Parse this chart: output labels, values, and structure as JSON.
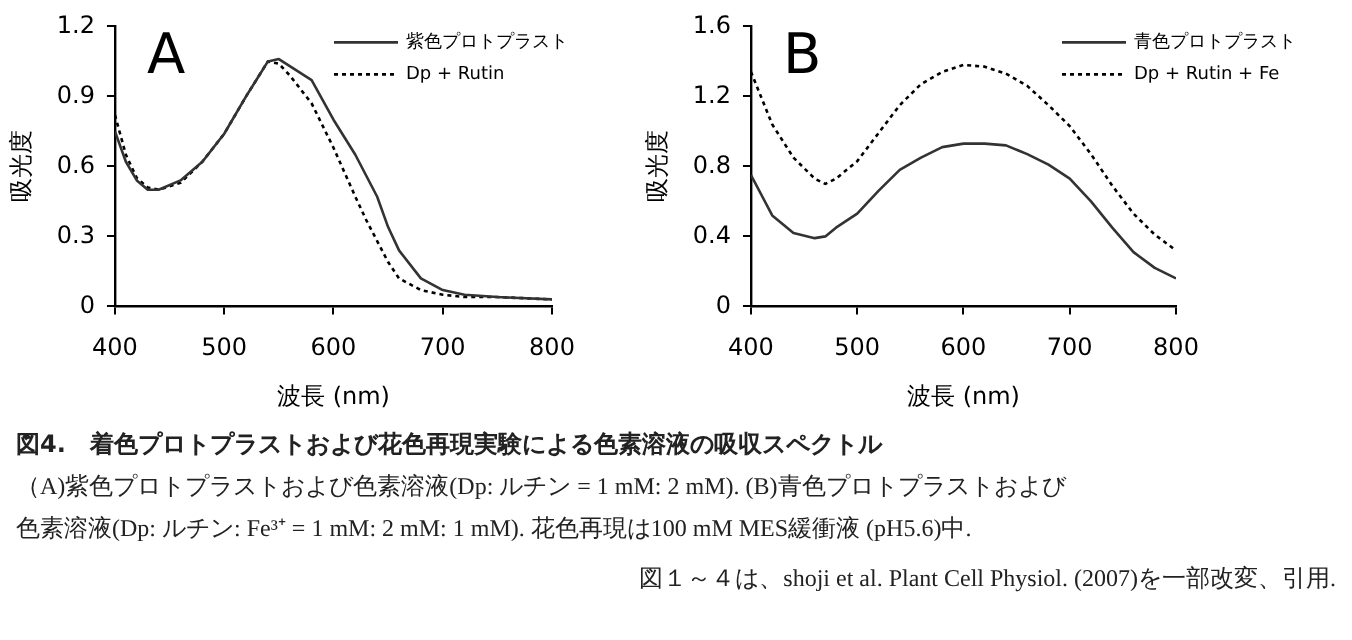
{
  "chart_data": [
    {
      "type": "line",
      "title": "A",
      "xlabel": "波長 (nm)",
      "ylabel": "吸光度",
      "xlim": [
        400,
        800
      ],
      "xticks": [
        400,
        500,
        600,
        700,
        800
      ],
      "ylim": [
        0,
        1.2
      ],
      "yticks": [
        0,
        0.3,
        0.6,
        0.9,
        1.2
      ],
      "grid": false,
      "legend": "top right",
      "marker": "none",
      "x": [
        400,
        410,
        420,
        430,
        440,
        460,
        480,
        500,
        520,
        540,
        550,
        560,
        580,
        600,
        620,
        630,
        640,
        650,
        660,
        680,
        700,
        720,
        750,
        800
      ],
      "series": [
        {
          "name": "紫色プロトプラスト",
          "color": "#333333",
          "line_style": "solid",
          "values": [
            0.75,
            0.62,
            0.54,
            0.5,
            0.5,
            0.54,
            0.62,
            0.74,
            0.9,
            1.05,
            1.06,
            1.03,
            0.97,
            0.8,
            0.65,
            0.56,
            0.47,
            0.34,
            0.24,
            0.12,
            0.07,
            0.05,
            0.04,
            0.03
          ]
        },
        {
          "name": "Dp + Rutin",
          "color": "#000000",
          "line_style": "dotted",
          "values": [
            0.82,
            0.65,
            0.55,
            0.51,
            0.5,
            0.53,
            0.62,
            0.74,
            0.9,
            1.05,
            1.04,
            0.99,
            0.87,
            0.68,
            0.47,
            0.37,
            0.28,
            0.19,
            0.12,
            0.07,
            0.05,
            0.04,
            0.04,
            0.03
          ]
        }
      ],
      "annotations": [
        "図4.　着色プロトプラストおよび花色再現実験による色素溶液の吸収スペクトル",
        "（A)紫色プロトプラストおよび色素溶液(Dp:  ルチン  =  1  mM:  2  mM). (B)青色プロトプラストおよび",
        "色素溶液(Dp:  ルチン: Fe³⁺ = 1 mM: 2 mM: 1 mM). 花色再現は100 mM MES緩衝液 (pH5.6)中.",
        "図１～４は、shoji et al. Plant Cell Physiol. (2007)を一部改変、引用."
      ]
    },
    {
      "type": "line",
      "title": "B",
      "xlabel": "波長 (nm)",
      "ylabel": "吸光度",
      "xlim": [
        400,
        800
      ],
      "xticks": [
        400,
        500,
        600,
        700,
        800
      ],
      "ylim": [
        0,
        1.6
      ],
      "yticks": [
        0,
        0.4,
        0.8,
        1.2,
        1.6
      ],
      "grid": false,
      "legend": "top right",
      "marker": "none",
      "x": [
        400,
        420,
        440,
        460,
        470,
        480,
        500,
        520,
        540,
        560,
        580,
        600,
        620,
        640,
        660,
        680,
        700,
        720,
        740,
        760,
        780,
        800
      ],
      "series": [
        {
          "name": "青色プロトプラスト",
          "color": "#333333",
          "line_style": "solid",
          "values": [
            0.75,
            0.52,
            0.42,
            0.39,
            0.4,
            0.45,
            0.53,
            0.66,
            0.78,
            0.85,
            0.91,
            0.93,
            0.93,
            0.92,
            0.87,
            0.81,
            0.73,
            0.6,
            0.45,
            0.31,
            0.22,
            0.16
          ]
        },
        {
          "name": "Dp + Rutin + Fe",
          "color": "#000000",
          "line_style": "dotted",
          "values": [
            1.34,
            1.04,
            0.85,
            0.73,
            0.7,
            0.73,
            0.83,
            0.99,
            1.15,
            1.27,
            1.34,
            1.38,
            1.37,
            1.33,
            1.26,
            1.15,
            1.03,
            0.87,
            0.69,
            0.53,
            0.41,
            0.32
          ]
        }
      ]
    }
  ]
}
